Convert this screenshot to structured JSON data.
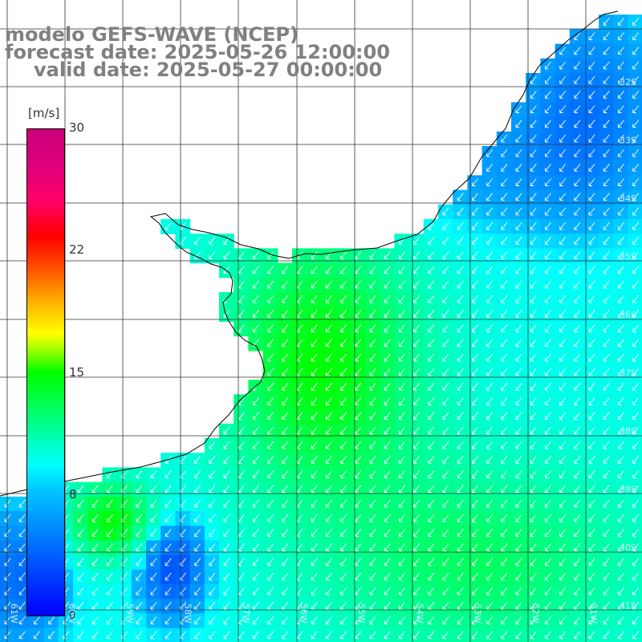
{
  "titles": {
    "line1": "modelo GEFS-WAVE (NCEP)",
    "line2": "forecast date: 2025-05-26 12:00:00",
    "line3": "valid date: 2025-05-27 00:00:00"
  },
  "colorbar": {
    "unit": "[m/s]",
    "ticks": [
      "30",
      "22",
      "15",
      "8",
      "0"
    ],
    "colors": [
      "#0000ff",
      "#00ffff",
      "#00ff00",
      "#ffff00",
      "#ff0000",
      "#c8007a"
    ]
  },
  "lat_labels": [
    "32S",
    "33S",
    "34S",
    "35S",
    "36S",
    "37S",
    "38S",
    "39S",
    "40S",
    "41S"
  ],
  "lon_labels": [
    "61W",
    "60W",
    "59W",
    "58W",
    "57W",
    "56W",
    "55W",
    "54W",
    "53W",
    "52W",
    "51W"
  ],
  "colors": {
    "land": "#ffffff",
    "coast": "#000000",
    "grid": "#222222",
    "arrow": "#ffffff",
    "title": "#808080"
  }
}
